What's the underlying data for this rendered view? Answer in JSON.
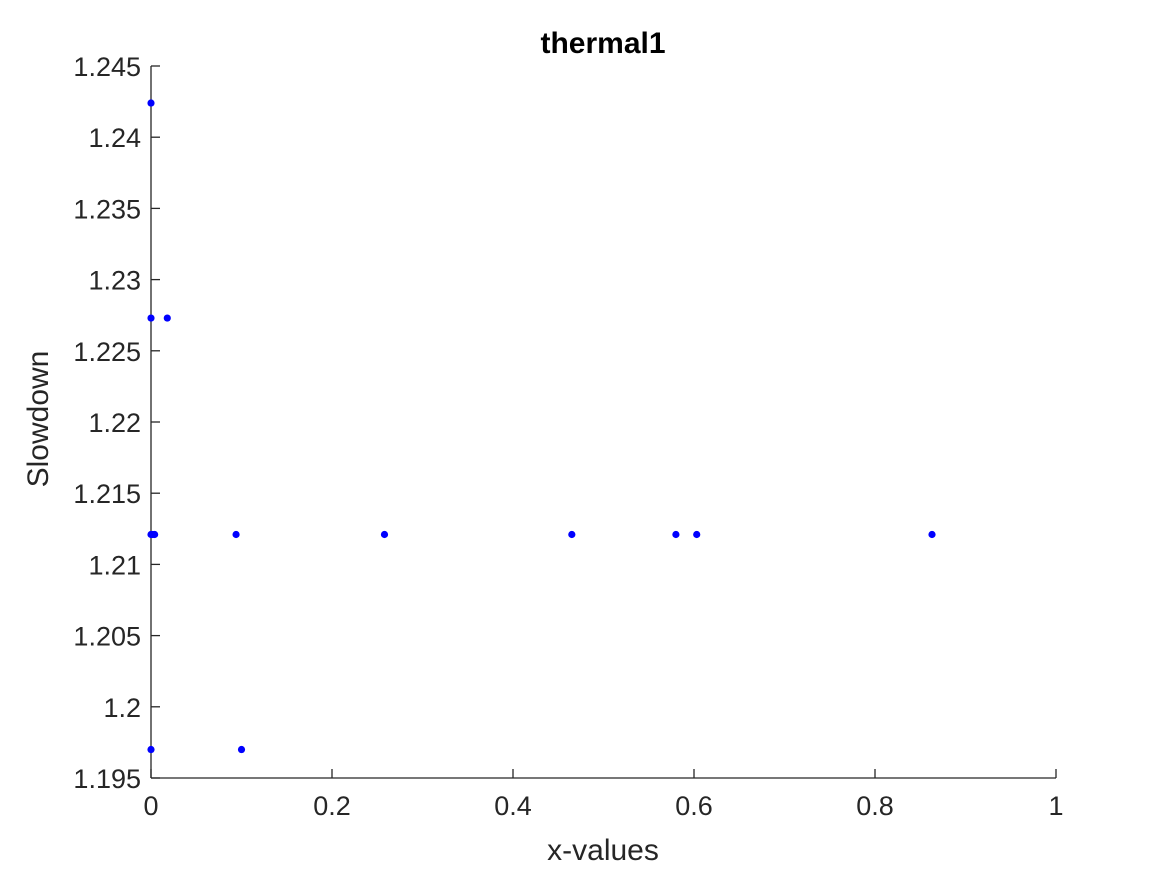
{
  "chart_data": {
    "type": "scatter",
    "title": "thermal1",
    "xlabel": "x-values",
    "ylabel": "Slowdown",
    "xlim": [
      0,
      1
    ],
    "ylim": [
      1.195,
      1.245
    ],
    "xticks": [
      0,
      0.2,
      0.4,
      0.6,
      0.8,
      1
    ],
    "xtick_labels": [
      "0",
      "0.2",
      "0.4",
      "0.6",
      "0.8",
      "1"
    ],
    "yticks": [
      1.195,
      1.2,
      1.205,
      1.21,
      1.215,
      1.22,
      1.225,
      1.23,
      1.235,
      1.24,
      1.245
    ],
    "ytick_labels": [
      "1.195",
      "1.2",
      "1.205",
      "1.21",
      "1.215",
      "1.22",
      "1.225",
      "1.23",
      "1.235",
      "1.24",
      "1.245"
    ],
    "grid": false,
    "marker_color": "#0000ff",
    "axis_color": "#262626",
    "series": [
      {
        "x": [
          0,
          0,
          0.018,
          0,
          0.002,
          0.004,
          0.094,
          0.258,
          0.465,
          0.58,
          0.603,
          0.863,
          0,
          0.1
        ],
        "y": [
          1.2424,
          1.2273,
          1.2273,
          1.2121,
          1.2121,
          1.2121,
          1.2121,
          1.2121,
          1.2121,
          1.2121,
          1.2121,
          1.2121,
          1.197,
          1.197
        ]
      }
    ]
  }
}
